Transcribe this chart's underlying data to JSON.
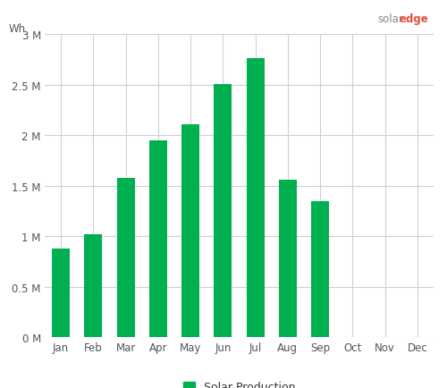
{
  "months": [
    "Jan",
    "Feb",
    "Mar",
    "Apr",
    "May",
    "Jun",
    "Jul",
    "Aug",
    "Sep",
    "Oct",
    "Nov",
    "Dec"
  ],
  "values": [
    875000,
    1020000,
    1580000,
    1950000,
    2110000,
    2510000,
    2760000,
    1560000,
    1350000,
    0,
    0,
    0
  ],
  "bar_color": "#00b050",
  "background_color": "#ffffff",
  "grid_color": "#d0d0d0",
  "ylabel": "Wh",
  "ylim": [
    0,
    3000000
  ],
  "yticks": [
    0,
    500000,
    1000000,
    1500000,
    2000000,
    2500000,
    3000000
  ],
  "ytick_labels": [
    "0 M",
    "0.5 M",
    "1 M",
    "1.5 M",
    "2 M",
    "2.5 M",
    "3 M"
  ],
  "legend_label": "Solar Production",
  "tick_fontsize": 8.5,
  "legend_fontsize": 9,
  "bar_width": 0.55,
  "solar_color": "#888888",
  "edge_color": "#e05040",
  "logo_fontsize": 8.5
}
